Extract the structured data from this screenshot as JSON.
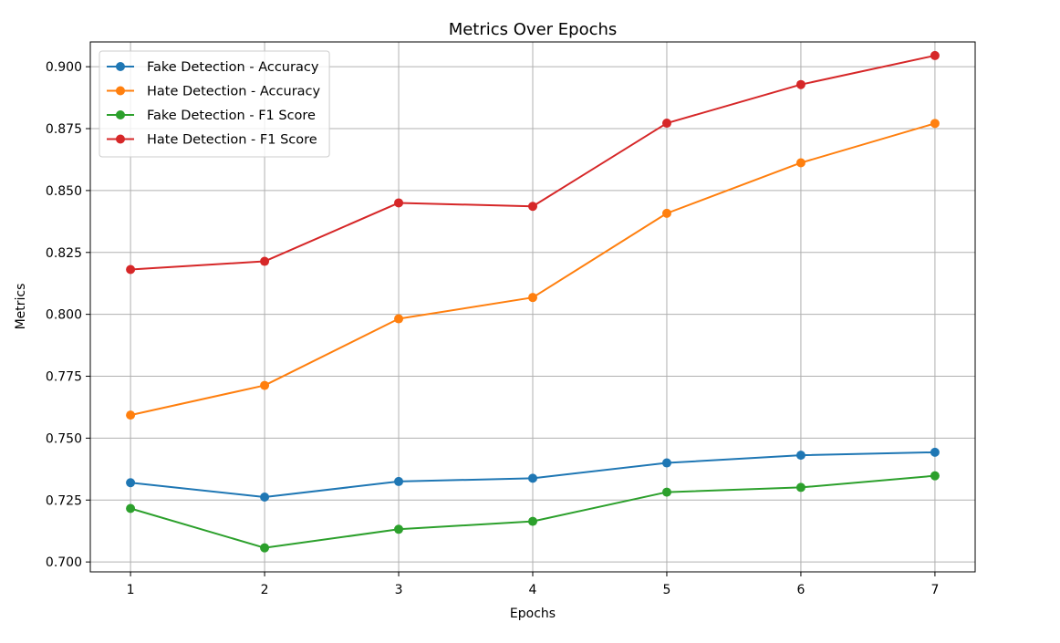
{
  "chart_data": {
    "type": "line",
    "title": "Metrics Over Epochs",
    "xlabel": "Epochs",
    "ylabel": "Metrics",
    "x": [
      1,
      2,
      3,
      4,
      5,
      6,
      7
    ],
    "xticks": [
      "1",
      "2",
      "3",
      "4",
      "5",
      "6",
      "7"
    ],
    "yticks": [
      "0.700",
      "0.725",
      "0.750",
      "0.775",
      "0.800",
      "0.825",
      "0.850",
      "0.875",
      "0.900"
    ],
    "xlim": [
      0.7,
      7.3
    ],
    "ylim": [
      0.696,
      0.91
    ],
    "grid": true,
    "legend_position": "upper-left",
    "series": [
      {
        "name": "Fake Detection - Accuracy",
        "color": "#1f77b4",
        "values": [
          0.732,
          0.7262,
          0.7325,
          0.7338,
          0.74,
          0.7431,
          0.7443
        ]
      },
      {
        "name": "Hate Detection - Accuracy",
        "color": "#ff7f0e",
        "values": [
          0.7593,
          0.7713,
          0.7982,
          0.8068,
          0.8408,
          0.8612,
          0.8771
        ]
      },
      {
        "name": "Fake Detection - F1 Score",
        "color": "#2ca02c",
        "values": [
          0.7216,
          0.7057,
          0.7132,
          0.7164,
          0.7282,
          0.7301,
          0.7348
        ]
      },
      {
        "name": "Hate Detection - F1 Score",
        "color": "#d62728",
        "values": [
          0.8181,
          0.8214,
          0.845,
          0.8436,
          0.8772,
          0.8928,
          0.9045
        ]
      }
    ]
  }
}
